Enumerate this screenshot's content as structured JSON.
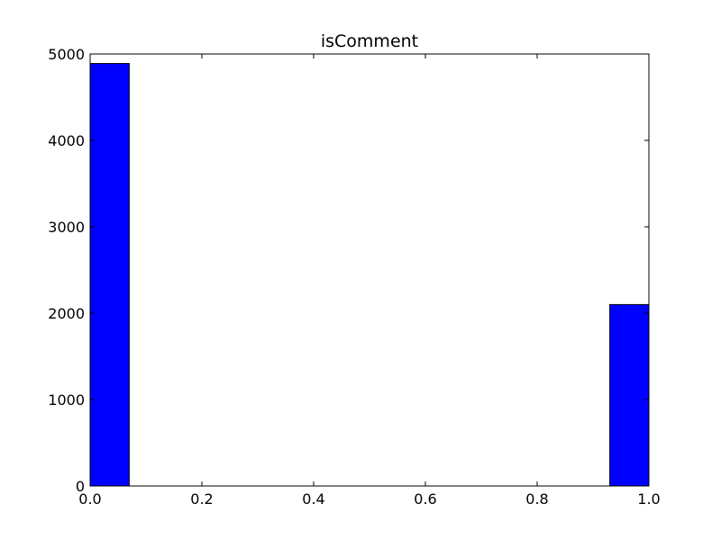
{
  "chart_data": {
    "type": "bar",
    "title": "isComment",
    "xlabel": "",
    "ylabel": "",
    "xlim": [
      0.0,
      1.0
    ],
    "ylim": [
      0,
      5000
    ],
    "grid": false,
    "x_ticks": [
      0.0,
      0.2,
      0.4,
      0.6,
      0.8,
      1.0
    ],
    "x_tick_labels": [
      "0.0",
      "0.2",
      "0.4",
      "0.6",
      "0.8",
      "1.0"
    ],
    "y_ticks": [
      0,
      1000,
      2000,
      3000,
      4000,
      5000
    ],
    "y_tick_labels": [
      "0",
      "1000",
      "2000",
      "3000",
      "4000",
      "5000"
    ],
    "bins": [
      {
        "x0": 0.0,
        "x1": 0.07,
        "value": 4890
      },
      {
        "x0": 0.93,
        "x1": 1.0,
        "value": 2100
      }
    ],
    "colors": {
      "bar": "#0000ff",
      "edge": "#000000"
    }
  }
}
